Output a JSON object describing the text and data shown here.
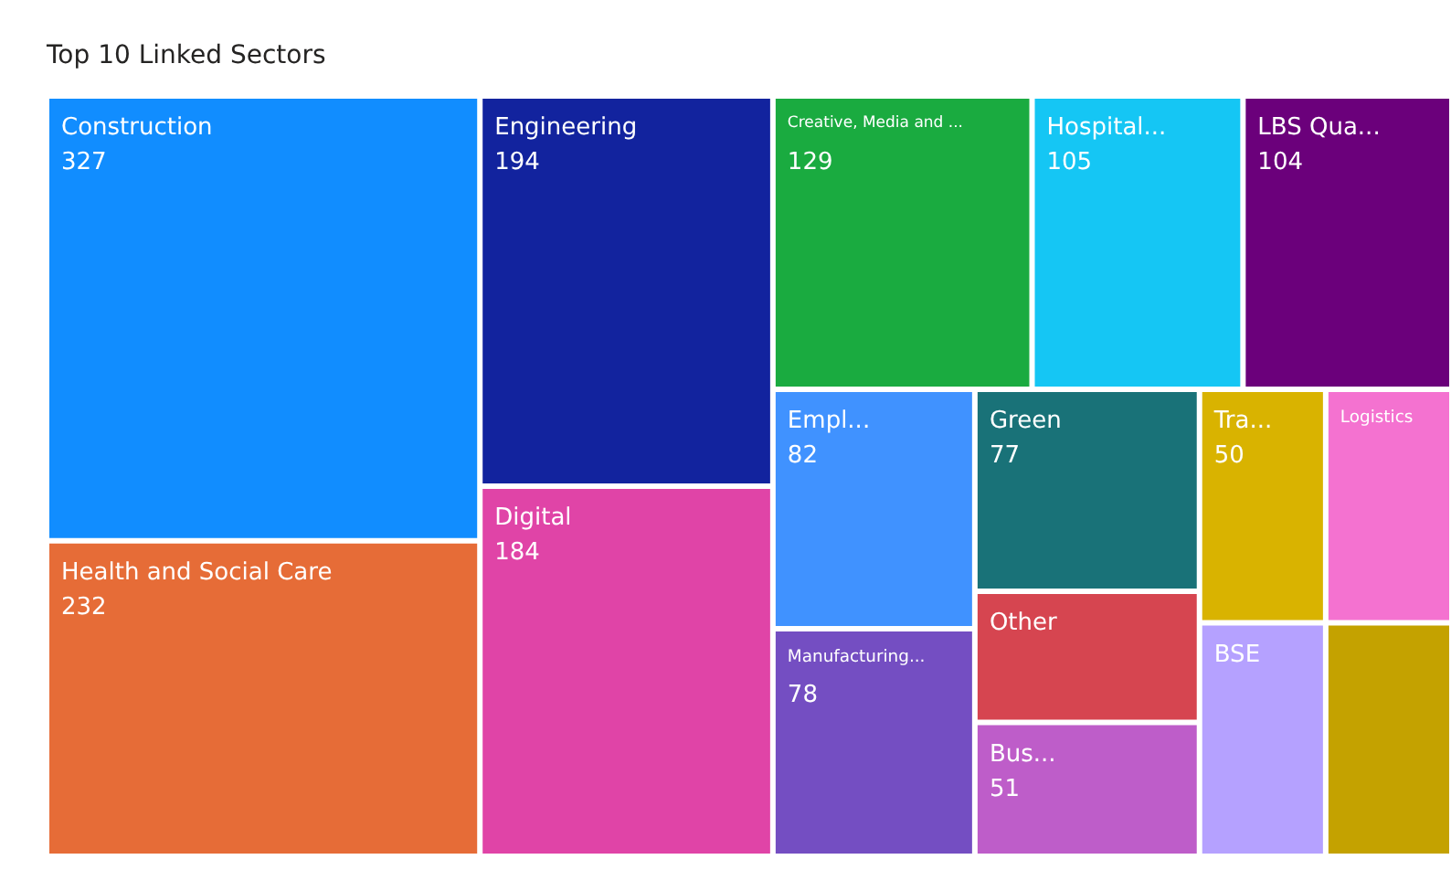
{
  "chart_data": {
    "type": "other",
    "title": "Top 10 Linked Sectors",
    "categories": [
      "Construction",
      "Health and Social Care",
      "Engineering",
      "Digital",
      "Creative, Media and ...",
      "Hospital...",
      "LBS Qua...",
      "Empl...",
      "Manufacturing...",
      "Green",
      "Other",
      "Bus...",
      "Tra...",
      "Logistics",
      "BSE",
      null
    ],
    "values": [
      327,
      232,
      194,
      184,
      129,
      105,
      104,
      82,
      78,
      77,
      null,
      51,
      50,
      null,
      null,
      null
    ],
    "value_labels": [
      "327",
      "232",
      "194",
      "184",
      "129",
      "105",
      "104",
      "82",
      "78",
      "77",
      null,
      "51",
      "50",
      null,
      null,
      null
    ],
    "colors": [
      "#118dff",
      "#e66c37",
      "#12239e",
      "#e044a7",
      "#1aab40",
      "#15c6f4",
      "#6b007b",
      "#4092ff",
      "#744ec2",
      "#197278",
      "#d64550",
      "#be5dc9",
      "#d9b300",
      "#f472d0",
      "#b5a1ff",
      "#c4a200"
    ]
  }
}
